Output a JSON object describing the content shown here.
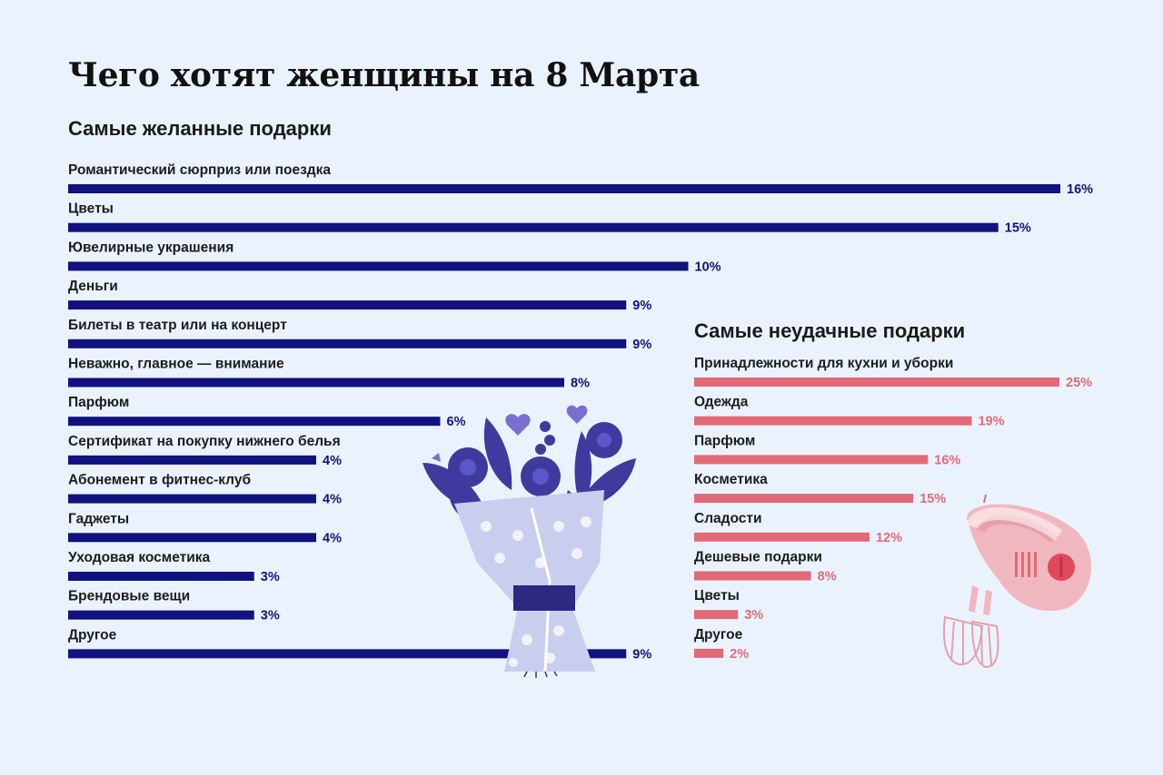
{
  "title": "Чего хотят женщины на 8 Марта",
  "colors": {
    "background": "#eaf3fd",
    "left_bar": "#11127f",
    "right_bar": "#e16a78"
  },
  "icons": [
    "flower-bouquet-icon",
    "hand-mixer-icon"
  ],
  "chart_data": [
    {
      "type": "bar",
      "orientation": "horizontal",
      "title": "Самые желанные подарки",
      "categories": [
        "Романтический сюрприз или поездка",
        "Цветы",
        "Ювелирные украшения",
        "Деньги",
        "Билеты в театр или на концерт",
        "Неважно, главное — внимание",
        "Парфюм",
        "Сертификат на покупку нижнего белья",
        "Абонемент в фитнес-клуб",
        "Гаджеты",
        "Уходовая косметика",
        "Брендовые вещи",
        "Другое"
      ],
      "values": [
        16,
        15,
        10,
        9,
        9,
        8,
        6,
        4,
        4,
        4,
        3,
        3,
        9
      ],
      "value_labels": [
        "16%",
        "15%",
        "10%",
        "9%",
        "9%",
        "8%",
        "6%",
        "4%",
        "4%",
        "4%",
        "3%",
        "3%",
        "9%"
      ],
      "unit": "%"
    },
    {
      "type": "bar",
      "orientation": "horizontal",
      "title": "Самые неудачные подарки",
      "categories": [
        "Принадлежности для кухни и уборки",
        "Одежда",
        "Парфюм",
        "Косметика",
        "Сладости",
        "Дешевые подарки",
        "Цветы",
        "Другое"
      ],
      "values": [
        25,
        19,
        16,
        15,
        12,
        8,
        3,
        2
      ],
      "value_labels": [
        "25%",
        "19%",
        "16%",
        "15%",
        "12%",
        "8%",
        "3%",
        "2%"
      ],
      "unit": "%"
    }
  ]
}
